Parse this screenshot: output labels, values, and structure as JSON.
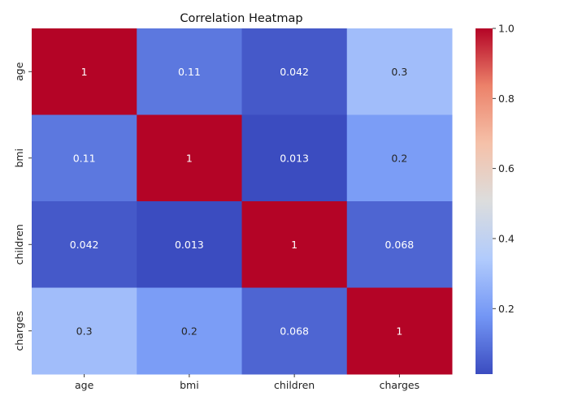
{
  "chart_data": {
    "type": "heatmap",
    "title": "Correlation Heatmap",
    "x_labels": [
      "age",
      "bmi",
      "children",
      "charges"
    ],
    "y_labels": [
      "age",
      "bmi",
      "children",
      "charges"
    ],
    "values": [
      [
        1,
        0.11,
        0.042,
        0.3
      ],
      [
        0.11,
        1,
        0.013,
        0.2
      ],
      [
        0.042,
        0.013,
        1,
        0.068
      ],
      [
        0.3,
        0.2,
        0.068,
        1
      ]
    ],
    "annotations": [
      [
        "1",
        "0.11",
        "0.042",
        "0.3"
      ],
      [
        "0.11",
        "1",
        "0.013",
        "0.2"
      ],
      [
        "0.042",
        "0.013",
        "1",
        "0.068"
      ],
      [
        "0.3",
        "0.2",
        "0.068",
        "1"
      ]
    ],
    "colorbar": {
      "min": 0.013,
      "max": 1.0,
      "ticks": [
        0.2,
        0.4,
        0.6,
        0.8,
        1.0
      ],
      "tick_labels": [
        "0.2",
        "0.4",
        "0.6",
        "0.8",
        "1.0"
      ]
    },
    "colormap": "coolwarm",
    "colormap_stops": [
      "#3b4cc0",
      "#7396f5",
      "#b1cbfc",
      "#dcdddd",
      "#f5c1a9",
      "#ec826a",
      "#b40426"
    ]
  }
}
